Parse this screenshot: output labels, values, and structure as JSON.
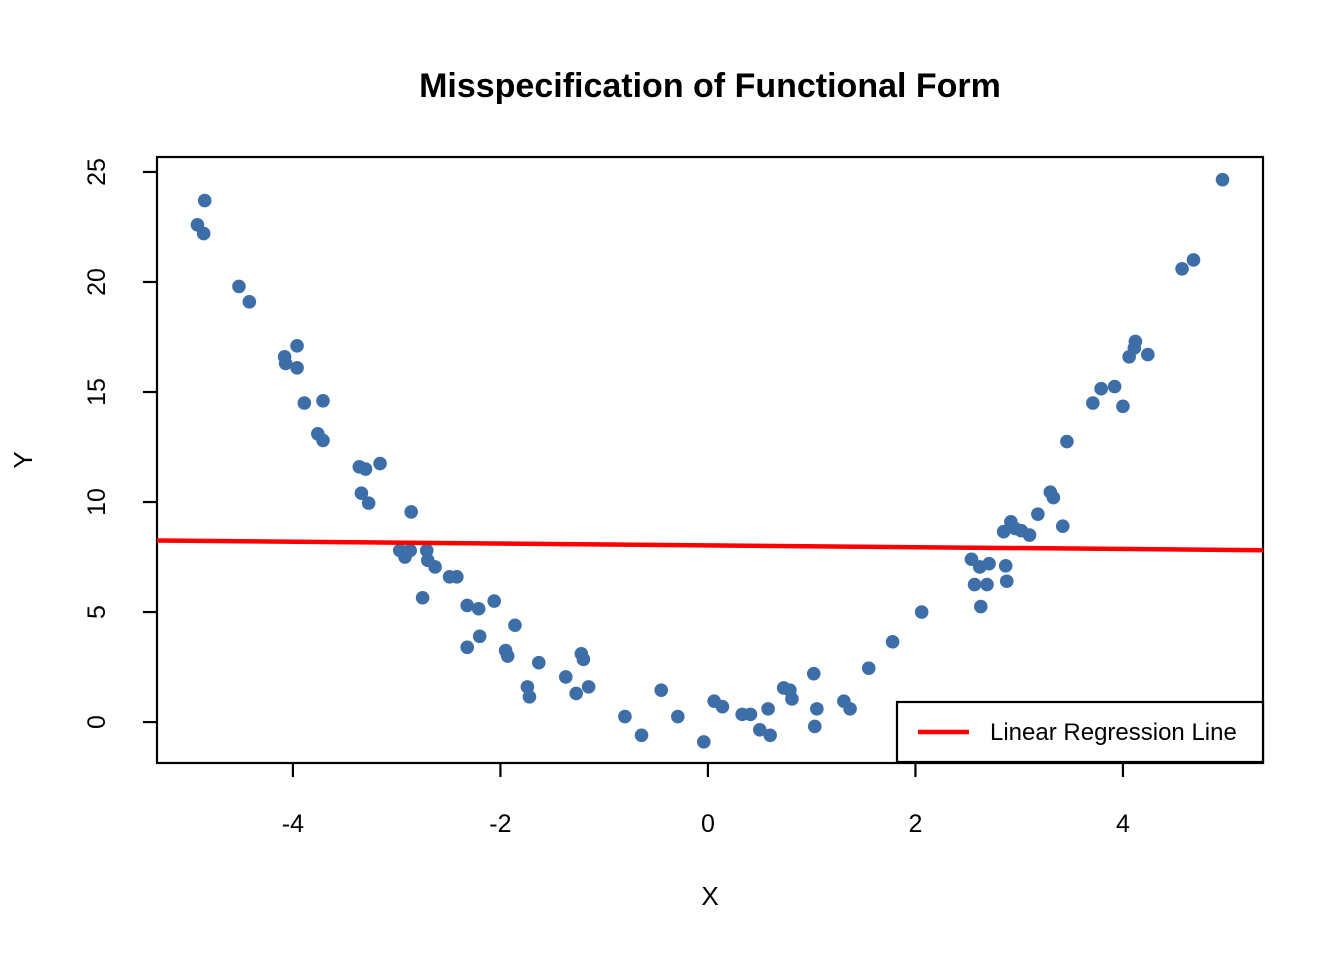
{
  "title": "Misspecification of Functional Form",
  "colors": {
    "point": "#3D6EA8",
    "regression_line": "#FF0000",
    "axis": "#000000",
    "background": "#FFFFFF"
  },
  "legend": {
    "label": "Linear Regression Line",
    "position": "bottomright"
  },
  "chart_data": {
    "type": "scatter",
    "title": "Misspecification of Functional Form",
    "xlabel": "X",
    "ylabel": "Y",
    "xlim": [
      -5.31,
      5.35
    ],
    "ylim": [
      -1.86,
      25.68
    ],
    "x_ticks": [
      -4,
      -2,
      0,
      2,
      4
    ],
    "y_ticks": [
      0,
      5,
      10,
      15,
      20,
      25
    ],
    "grid": false,
    "legend_position": "bottomright",
    "points": [
      [
        -4.85,
        23.7
      ],
      [
        -4.92,
        22.6
      ],
      [
        -4.86,
        22.2
      ],
      [
        -4.52,
        19.8
      ],
      [
        -4.42,
        19.1
      ],
      [
        -3.96,
        17.1
      ],
      [
        -4.08,
        16.6
      ],
      [
        -4.07,
        16.3
      ],
      [
        -3.96,
        16.1
      ],
      [
        -3.89,
        14.5
      ],
      [
        -3.71,
        14.6
      ],
      [
        -3.76,
        13.1
      ],
      [
        -3.71,
        12.8
      ],
      [
        -3.36,
        11.6
      ],
      [
        -3.3,
        11.5
      ],
      [
        -3.16,
        11.75
      ],
      [
        -3.34,
        10.4
      ],
      [
        -3.27,
        9.95
      ],
      [
        -2.86,
        9.55
      ],
      [
        -2.97,
        7.8
      ],
      [
        -2.92,
        7.5
      ],
      [
        -2.87,
        7.8
      ],
      [
        -2.71,
        7.8
      ],
      [
        -2.7,
        7.35
      ],
      [
        -2.63,
        7.05
      ],
      [
        -2.49,
        6.6
      ],
      [
        -2.42,
        6.6
      ],
      [
        -2.75,
        5.65
      ],
      [
        -2.32,
        5.3
      ],
      [
        -2.21,
        5.15
      ],
      [
        -2.06,
        5.5
      ],
      [
        -2.2,
        3.9
      ],
      [
        -2.32,
        3.4
      ],
      [
        -1.86,
        4.4
      ],
      [
        -1.95,
        3.25
      ],
      [
        -1.93,
        3.0
      ],
      [
        -1.74,
        1.6
      ],
      [
        -1.72,
        1.15
      ],
      [
        -1.63,
        2.7
      ],
      [
        -1.37,
        2.05
      ],
      [
        -1.22,
        3.1
      ],
      [
        -1.2,
        2.85
      ],
      [
        -1.27,
        1.3
      ],
      [
        -1.15,
        1.6
      ],
      [
        -0.8,
        0.25
      ],
      [
        -0.64,
        -0.6
      ],
      [
        -0.45,
        1.45
      ],
      [
        -0.29,
        0.25
      ],
      [
        -0.04,
        -0.9
      ],
      [
        0.06,
        0.95
      ],
      [
        0.14,
        0.7
      ],
      [
        0.33,
        0.35
      ],
      [
        0.41,
        0.35
      ],
      [
        0.5,
        -0.35
      ],
      [
        0.6,
        -0.6
      ],
      [
        0.58,
        0.6
      ],
      [
        0.73,
        1.55
      ],
      [
        0.79,
        1.45
      ],
      [
        0.81,
        1.05
      ],
      [
        1.02,
        2.2
      ],
      [
        1.05,
        0.6
      ],
      [
        1.03,
        -0.2
      ],
      [
        1.31,
        0.95
      ],
      [
        1.37,
        0.6
      ],
      [
        1.55,
        2.45
      ],
      [
        1.78,
        3.65
      ],
      [
        2.06,
        5.0
      ],
      [
        2.63,
        5.25
      ],
      [
        2.54,
        7.4
      ],
      [
        2.62,
        7.05
      ],
      [
        2.71,
        7.2
      ],
      [
        2.87,
        7.1
      ],
      [
        2.57,
        6.25
      ],
      [
        2.69,
        6.25
      ],
      [
        2.88,
        6.4
      ],
      [
        2.85,
        8.65
      ],
      [
        2.92,
        9.1
      ],
      [
        2.96,
        8.8
      ],
      [
        3.02,
        8.7
      ],
      [
        3.1,
        8.5
      ],
      [
        3.18,
        9.45
      ],
      [
        3.42,
        8.9
      ],
      [
        3.3,
        10.45
      ],
      [
        3.33,
        10.2
      ],
      [
        3.46,
        12.75
      ],
      [
        3.71,
        14.5
      ],
      [
        3.79,
        15.15
      ],
      [
        3.92,
        15.25
      ],
      [
        4.0,
        14.35
      ],
      [
        4.06,
        16.6
      ],
      [
        4.12,
        17.3
      ],
      [
        4.11,
        17.0
      ],
      [
        4.24,
        16.7
      ],
      [
        4.57,
        20.6
      ],
      [
        4.68,
        21.0
      ],
      [
        4.96,
        24.65
      ]
    ],
    "regression_line": {
      "label": "Linear Regression Line",
      "color": "#FF0000",
      "intercept": 8.03,
      "slope": -0.042,
      "x": [
        -5.31,
        5.35
      ],
      "y": [
        8.25,
        7.81
      ]
    }
  }
}
